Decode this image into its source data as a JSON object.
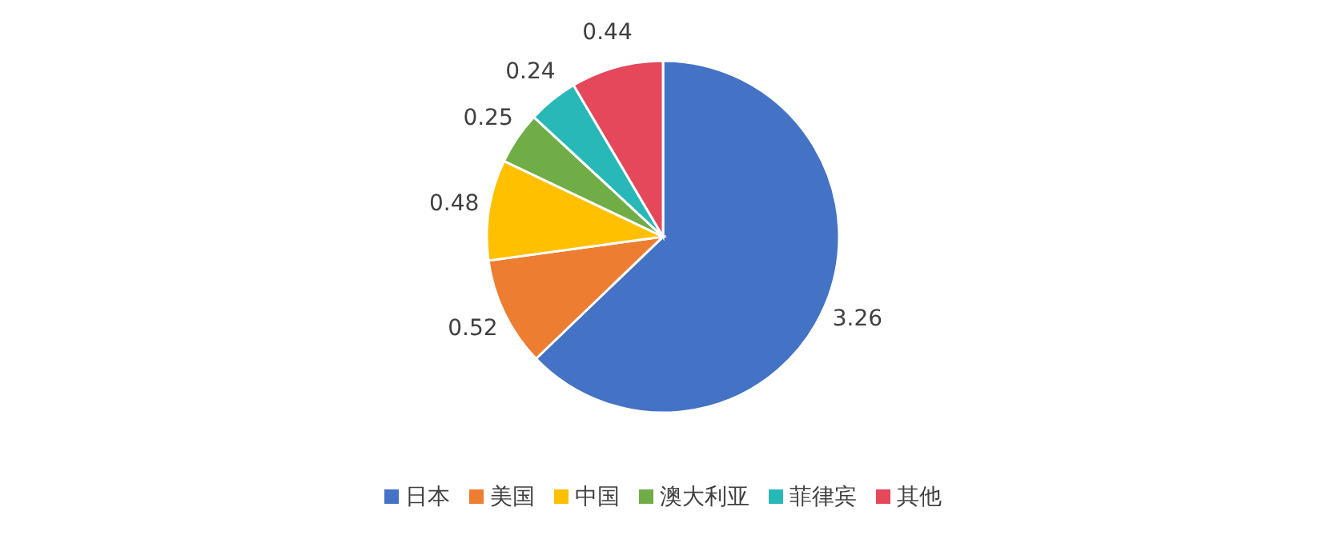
{
  "chart_data": {
    "type": "pie",
    "categories": [
      "日本",
      "美国",
      "中国",
      "澳大利亚",
      "菲律宾",
      "其他"
    ],
    "values": [
      3.26,
      0.52,
      0.48,
      0.25,
      0.24,
      0.44
    ],
    "colors": [
      "#4472c4",
      "#ed7d31",
      "#ffc000",
      "#70ad47",
      "#29b8b8",
      "#e5475b"
    ],
    "data_labels": true,
    "legend": "bottom"
  }
}
